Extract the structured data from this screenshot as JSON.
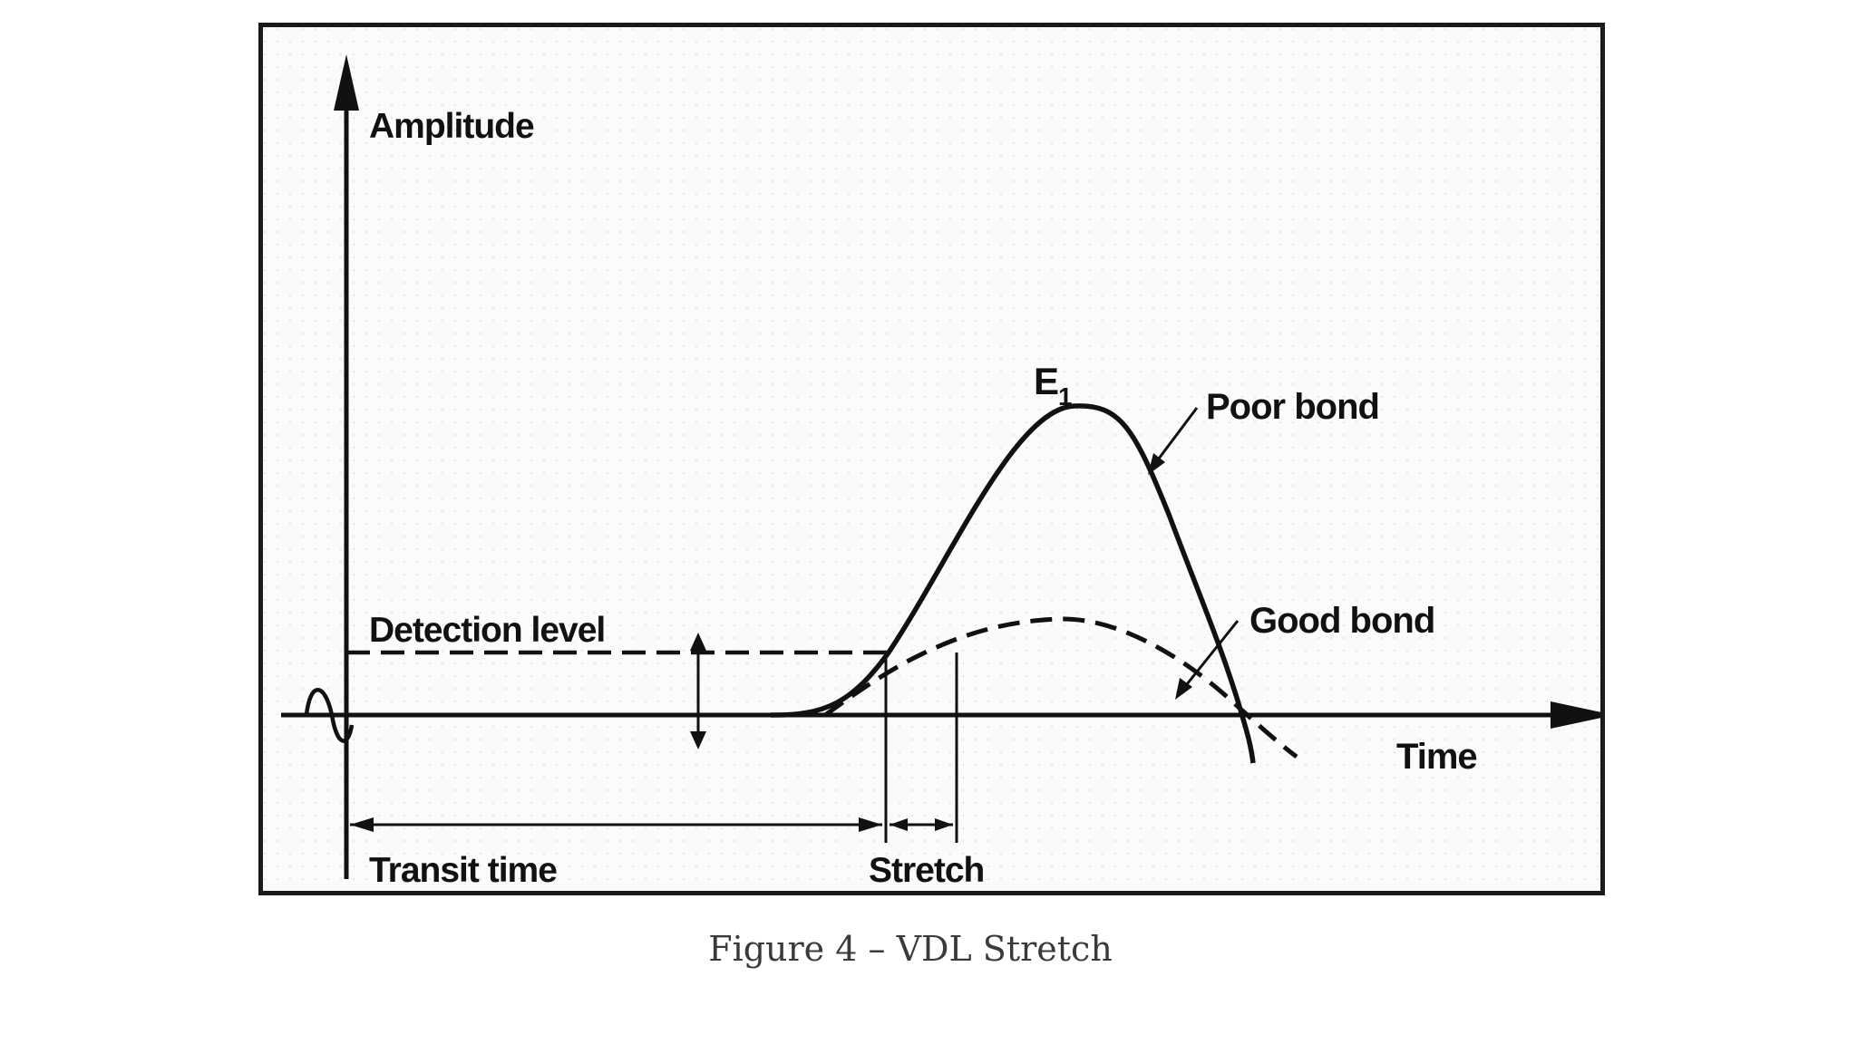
{
  "diagram": {
    "axes": {
      "y_label": "Amplitude",
      "x_label": "Time"
    },
    "peak_label": {
      "base": "E",
      "subscript": "1"
    },
    "curves": {
      "poor_bond": "Poor bond",
      "good_bond": "Good bond"
    },
    "detection_level": "Detection level",
    "intervals": {
      "transit_time": "Transit time",
      "stretch": "Stretch"
    }
  },
  "caption": "Figure 4 – VDL Stretch"
}
